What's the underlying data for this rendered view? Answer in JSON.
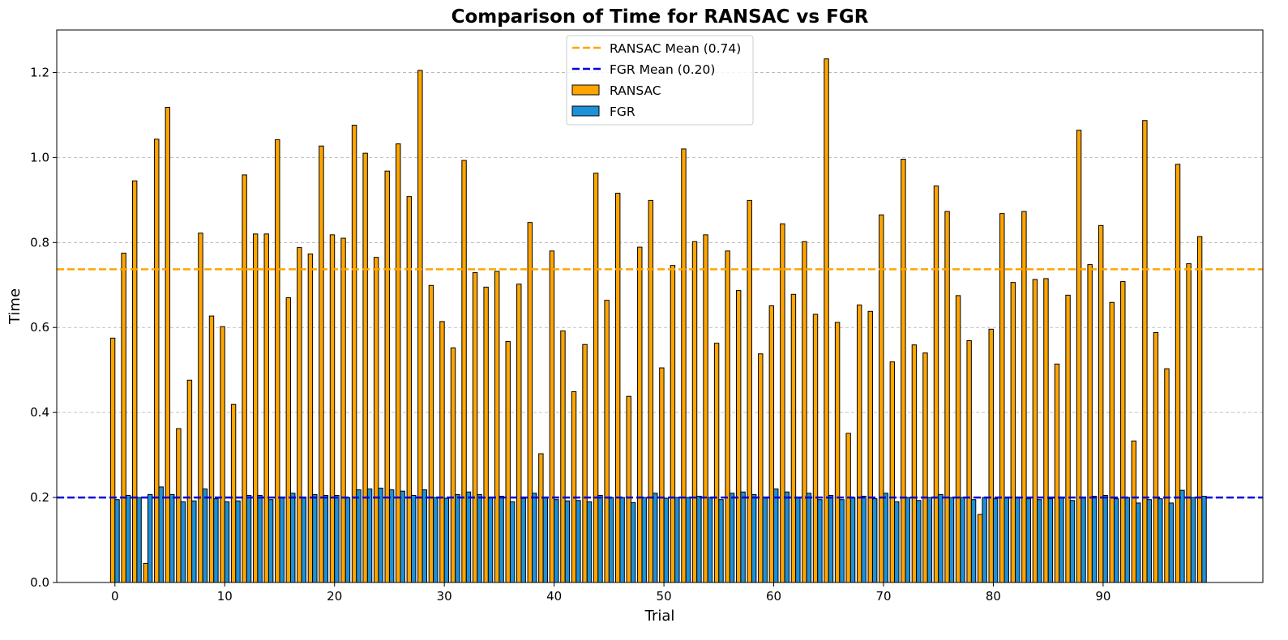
{
  "chart_data": {
    "type": "bar",
    "title": "Comparison of Time for RANSAC vs FGR",
    "xlabel": "Trial",
    "ylabel": "Time",
    "ylim": [
      0,
      1.3
    ],
    "xticks": [
      0,
      10,
      20,
      30,
      40,
      50,
      60,
      70,
      80,
      90
    ],
    "yticks": [
      0.0,
      0.2,
      0.4,
      0.6,
      0.8,
      1.0,
      1.2
    ],
    "grid": "y-dashed",
    "legend_position": "top-center",
    "x": [
      0,
      1,
      2,
      3,
      4,
      5,
      6,
      7,
      8,
      9,
      10,
      11,
      12,
      13,
      14,
      15,
      16,
      17,
      18,
      19,
      20,
      21,
      22,
      23,
      24,
      25,
      26,
      27,
      28,
      29,
      30,
      31,
      32,
      33,
      34,
      35,
      36,
      37,
      38,
      39,
      40,
      41,
      42,
      43,
      44,
      45,
      46,
      47,
      48,
      49,
      50,
      51,
      52,
      53,
      54,
      55,
      56,
      57,
      58,
      59,
      60,
      61,
      62,
      63,
      64,
      65,
      66,
      67,
      68,
      69,
      70,
      71,
      72,
      73,
      74,
      75,
      76,
      77,
      78,
      79,
      80,
      81,
      82,
      83,
      84,
      85,
      86,
      87,
      88,
      89,
      90,
      91,
      92,
      93,
      94,
      95,
      96,
      97,
      98,
      99
    ],
    "series": [
      {
        "name": "RANSAC",
        "color": "#FFA500",
        "values": [
          0.575,
          0.775,
          0.945,
          0.045,
          1.043,
          1.118,
          0.362,
          0.476,
          0.822,
          0.627,
          0.602,
          0.419,
          0.959,
          0.82,
          0.82,
          1.042,
          0.67,
          0.788,
          0.773,
          1.027,
          0.818,
          0.81,
          1.076,
          1.01,
          0.765,
          0.968,
          1.032,
          0.908,
          1.205,
          0.699,
          0.614,
          0.552,
          0.993,
          0.729,
          0.695,
          0.732,
          0.567,
          0.702,
          0.847,
          0.303,
          0.78,
          0.592,
          0.449,
          0.56,
          0.963,
          0.664,
          0.916,
          0.438,
          0.789,
          0.899,
          0.505,
          0.746,
          1.02,
          0.802,
          0.818,
          0.563,
          0.78,
          0.687,
          0.899,
          0.538,
          0.651,
          0.844,
          0.678,
          0.802,
          0.631,
          1.232,
          0.612,
          0.351,
          0.653,
          0.638,
          0.865,
          0.519,
          0.996,
          0.559,
          0.54,
          0.933,
          0.873,
          0.675,
          0.569,
          0.16,
          0.596,
          0.868,
          0.706,
          0.873,
          0.713,
          0.715,
          0.514,
          0.676,
          1.064,
          0.748,
          0.84,
          0.659,
          0.708,
          0.333,
          1.087,
          0.588,
          0.503,
          0.984,
          0.75,
          0.814
        ]
      },
      {
        "name": "FGR",
        "color": "#1E90D8",
        "values": [
          0.195,
          0.205,
          0.2,
          0.207,
          0.225,
          0.207,
          0.19,
          0.192,
          0.22,
          0.197,
          0.19,
          0.192,
          0.205,
          0.205,
          0.195,
          0.2,
          0.21,
          0.2,
          0.207,
          0.205,
          0.205,
          0.2,
          0.218,
          0.22,
          0.222,
          0.218,
          0.215,
          0.205,
          0.218,
          0.2,
          0.198,
          0.207,
          0.213,
          0.207,
          0.2,
          0.203,
          0.19,
          0.198,
          0.21,
          0.2,
          0.195,
          0.192,
          0.193,
          0.19,
          0.205,
          0.2,
          0.2,
          0.188,
          0.2,
          0.21,
          0.198,
          0.2,
          0.2,
          0.203,
          0.2,
          0.195,
          0.21,
          0.213,
          0.207,
          0.2,
          0.22,
          0.213,
          0.2,
          0.21,
          0.195,
          0.205,
          0.195,
          0.2,
          0.203,
          0.197,
          0.21,
          0.19,
          0.2,
          0.193,
          0.2,
          0.207,
          0.2,
          0.2,
          0.195,
          0.2,
          0.197,
          0.2,
          0.2,
          0.197,
          0.195,
          0.197,
          0.2,
          0.193,
          0.2,
          0.203,
          0.205,
          0.197,
          0.2,
          0.187,
          0.195,
          0.197,
          0.187,
          0.217,
          0.2,
          0.203
        ]
      }
    ],
    "mean_lines": [
      {
        "label": "RANSAC Mean (0.74)",
        "value": 0.737,
        "color": "#FFA500"
      },
      {
        "label": "FGR Mean (0.20)",
        "value": 0.2,
        "color": "#0000DD"
      }
    ],
    "legend": [
      "RANSAC Mean (0.74)",
      "FGR Mean (0.20)",
      "RANSAC",
      "FGR"
    ]
  }
}
